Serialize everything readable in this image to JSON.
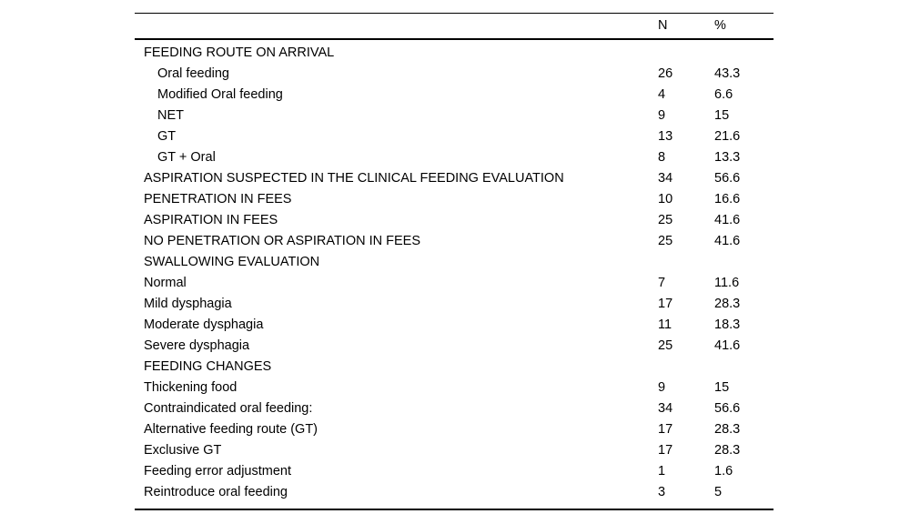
{
  "table": {
    "columns": {
      "n": "N",
      "pct": "%"
    },
    "rows": [
      {
        "label": "FEEDING ROUTE ON ARRIVAL",
        "n": "",
        "pct": "",
        "indent": false
      },
      {
        "label": "Oral feeding",
        "n": "26",
        "pct": "43.3",
        "indent": true
      },
      {
        "label": "Modified Oral feeding",
        "n": "4",
        "pct": "6.6",
        "indent": true
      },
      {
        "label": "NET",
        "n": "9",
        "pct": "15",
        "indent": true
      },
      {
        "label": "GT",
        "n": "13",
        "pct": "21.6",
        "indent": true
      },
      {
        "label": "GT + Oral",
        "n": "8",
        "pct": "13.3",
        "indent": true
      },
      {
        "label": "ASPIRATION SUSPECTED IN THE CLINICAL FEEDING EVALUATION",
        "n": "34",
        "pct": "56.6",
        "indent": false
      },
      {
        "label": "PENETRATION IN FEES",
        "n": "10",
        "pct": "16.6",
        "indent": false
      },
      {
        "label": "ASPIRATION IN FEES",
        "n": "25",
        "pct": "41.6",
        "indent": false
      },
      {
        "label": "NO PENETRATION OR ASPIRATION IN FEES",
        "n": "25",
        "pct": "41.6",
        "indent": false
      },
      {
        "label": "SWALLOWING EVALUATION",
        "n": "",
        "pct": "",
        "indent": false
      },
      {
        "label": "Normal",
        "n": "7",
        "pct": "11.6",
        "indent": false
      },
      {
        "label": "Mild dysphagia",
        "n": "17",
        "pct": "28.3",
        "indent": false
      },
      {
        "label": "Moderate dysphagia",
        "n": "11",
        "pct": "18.3",
        "indent": false
      },
      {
        "label": "Severe dysphagia",
        "n": "25",
        "pct": "41.6",
        "indent": false
      },
      {
        "label": "FEEDING CHANGES",
        "n": "",
        "pct": "",
        "indent": false
      },
      {
        "label": "Thickening food",
        "n": "9",
        "pct": "15",
        "indent": false
      },
      {
        "label": "Contraindicated oral feeding:",
        "n": "34",
        "pct": "56.6",
        "indent": false
      },
      {
        "label": "Alternative feeding route (GT)",
        "n": "17",
        "pct": "28.3",
        "indent": false
      },
      {
        "label": "Exclusive GT",
        "n": "17",
        "pct": "28.3",
        "indent": false
      },
      {
        "label": "Feeding error adjustment",
        "n": "1",
        "pct": "1.6",
        "indent": false
      },
      {
        "label": "Reintroduce oral feeding",
        "n": "3",
        "pct": "5",
        "indent": false
      }
    ]
  }
}
